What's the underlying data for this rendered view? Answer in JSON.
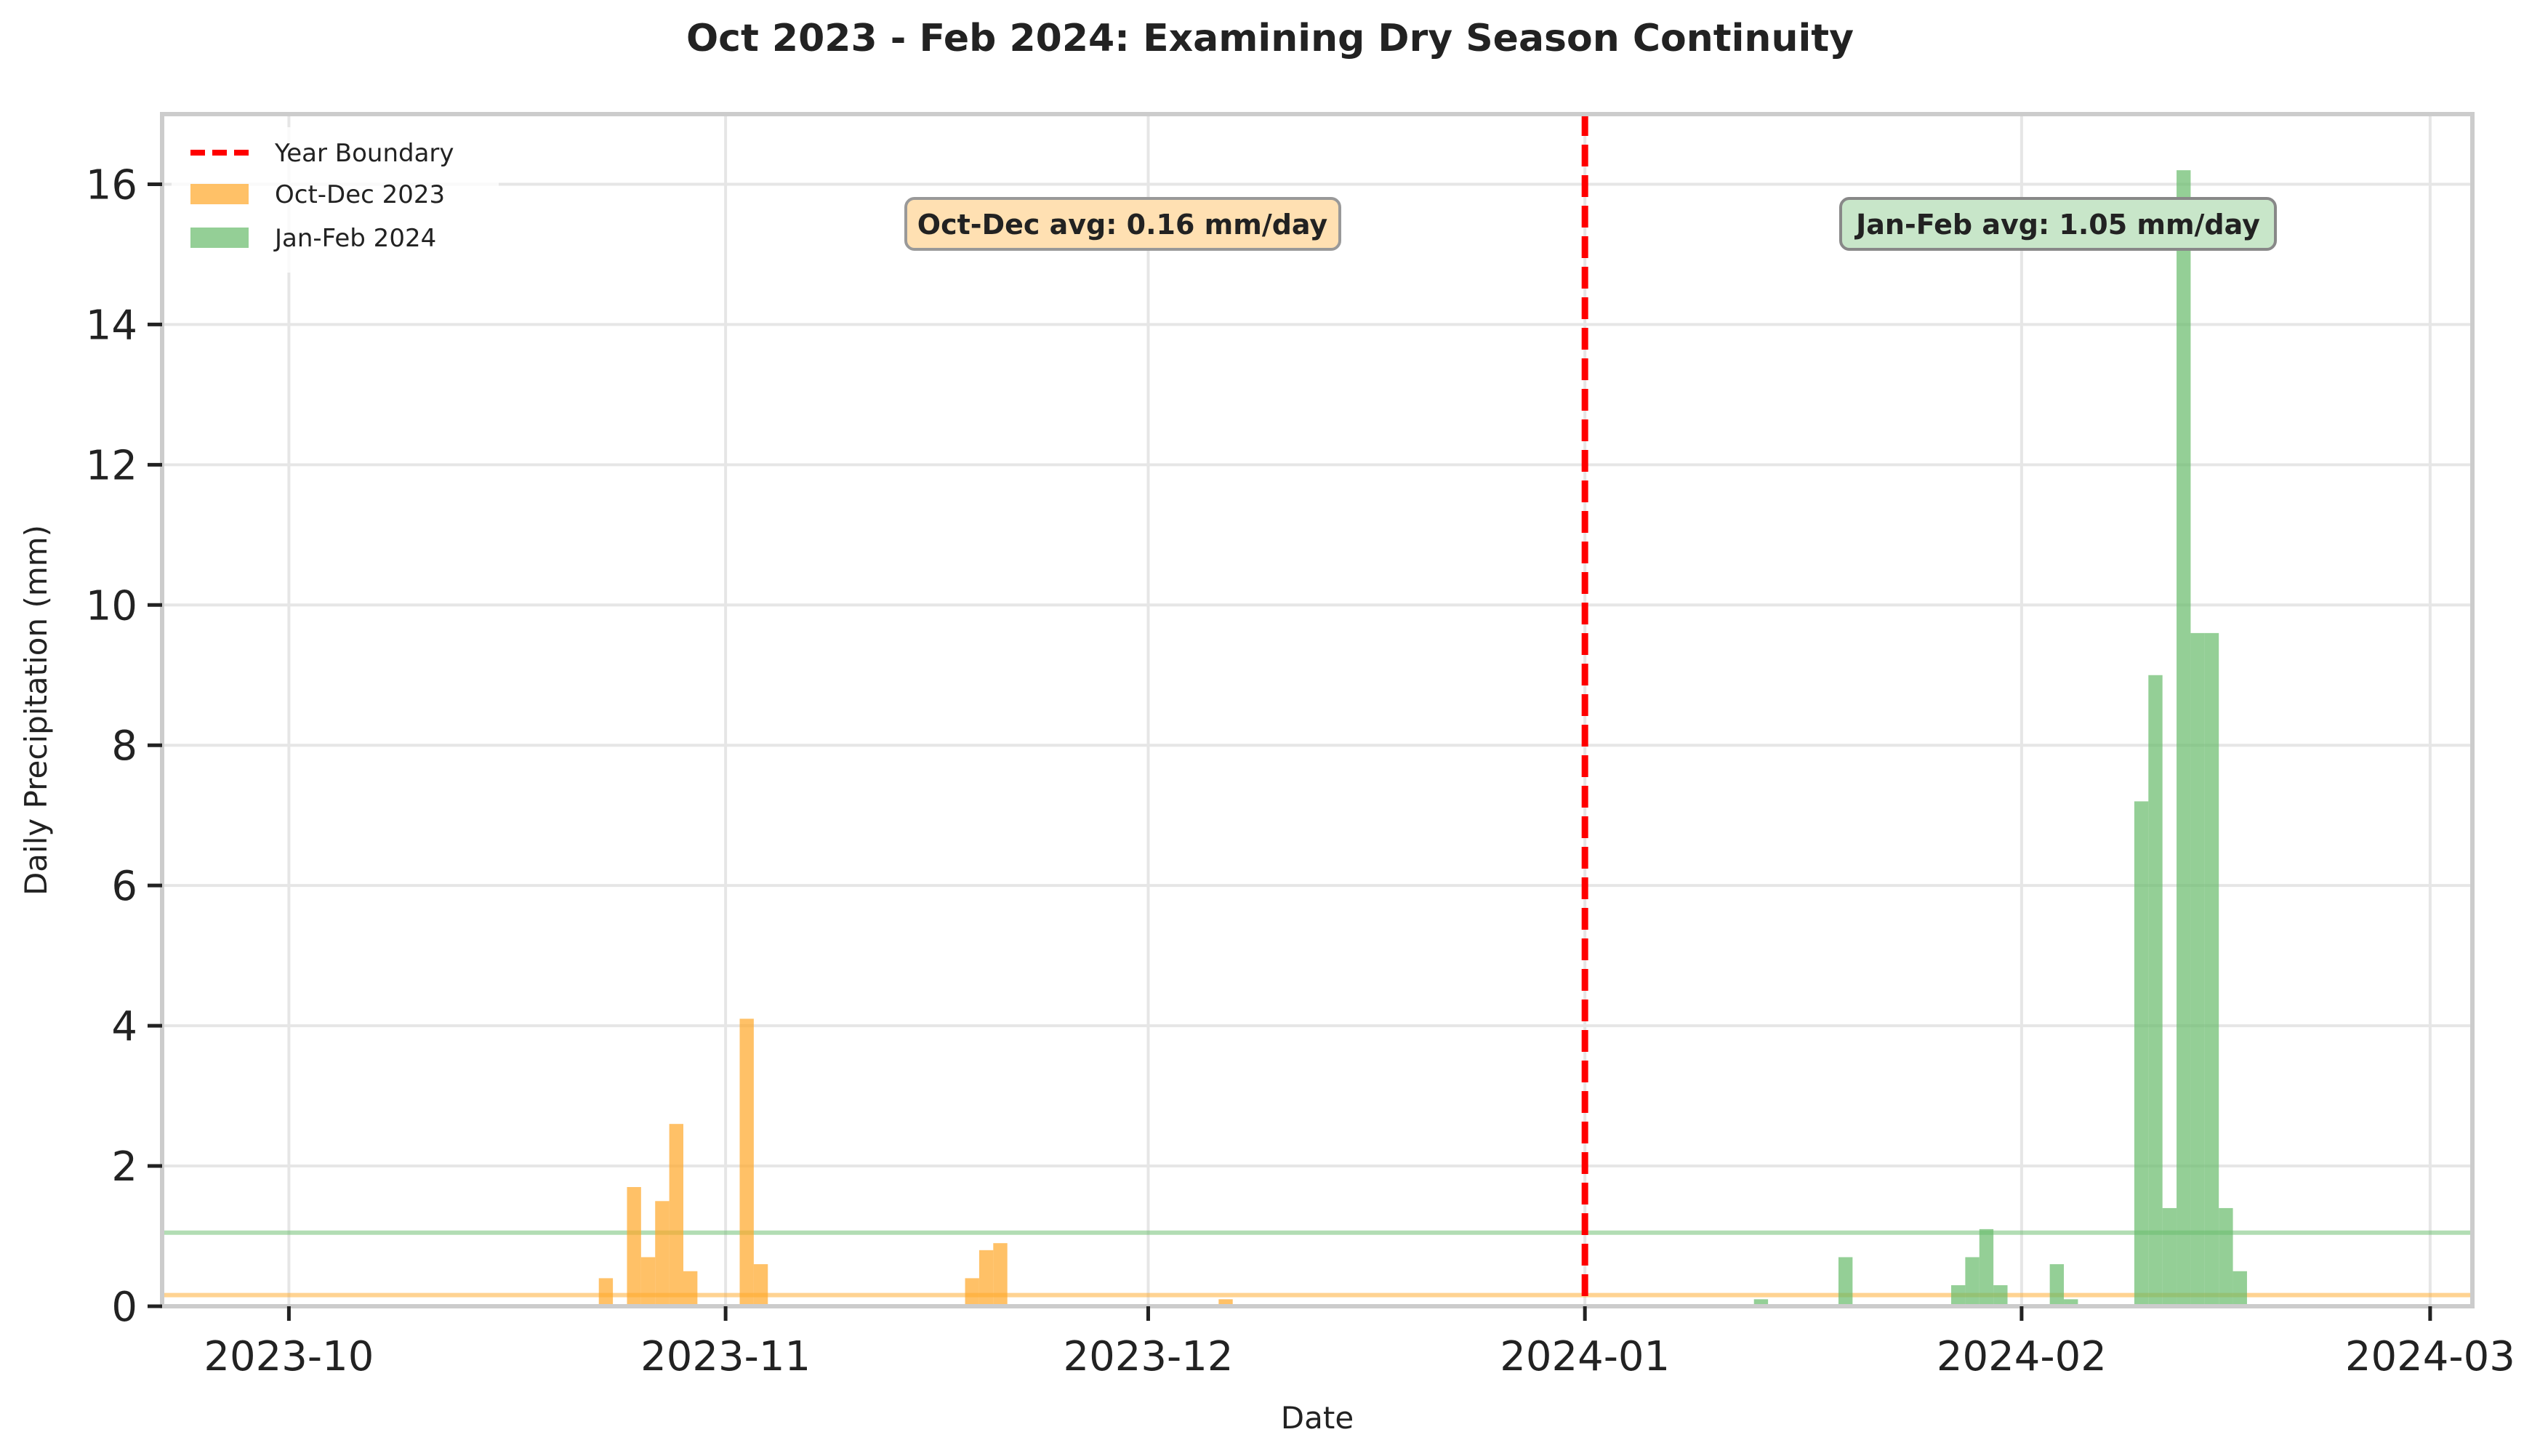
{
  "chart_data": {
    "type": "bar",
    "title": "Oct 2023 - Feb 2024: Examining Dry Season Continuity",
    "xlabel": "Date",
    "ylabel": "Daily Precipitation (mm)",
    "xlim": [
      "2023-09-22",
      "2024-03-04"
    ],
    "ylim": [
      0,
      17
    ],
    "grid": true,
    "legend_position": "top-left",
    "x_ticks": [
      "2023-10",
      "2023-11",
      "2023-12",
      "2024-01",
      "2024-02",
      "2024-03"
    ],
    "x_tick_dates": [
      "2023-10-01",
      "2023-11-01",
      "2023-12-01",
      "2024-01-01",
      "2024-02-01",
      "2024-03-01"
    ],
    "y_ticks": [
      "0",
      "2",
      "4",
      "6",
      "8",
      "10",
      "12",
      "14",
      "16"
    ],
    "colors": {
      "oct_dec": "#ffa726",
      "jan_feb": "#66bb6a",
      "boundary": "#ff0000"
    },
    "series": [
      {
        "name": "Oct-Dec 2023",
        "color": "#ffa726",
        "points": [
          [
            "2023-10-23",
            0.4
          ],
          [
            "2023-10-25",
            1.7
          ],
          [
            "2023-10-26",
            0.7
          ],
          [
            "2023-10-27",
            1.5
          ],
          [
            "2023-10-28",
            2.6
          ],
          [
            "2023-10-29",
            0.5
          ],
          [
            "2023-11-02",
            4.1
          ],
          [
            "2023-11-03",
            0.6
          ],
          [
            "2023-11-18",
            0.4
          ],
          [
            "2023-11-19",
            0.8
          ],
          [
            "2023-11-20",
            0.9
          ],
          [
            "2023-12-06",
            0.1
          ]
        ]
      },
      {
        "name": "Jan-Feb 2024",
        "color": "#66bb6a",
        "points": [
          [
            "2024-01-13",
            0.1
          ],
          [
            "2024-01-19",
            0.7
          ],
          [
            "2024-01-27",
            0.3
          ],
          [
            "2024-01-28",
            0.7
          ],
          [
            "2024-01-29",
            1.1
          ],
          [
            "2024-01-30",
            0.3
          ],
          [
            "2024-02-03",
            0.6
          ],
          [
            "2024-02-04",
            0.1
          ],
          [
            "2024-02-09",
            7.2
          ],
          [
            "2024-02-10",
            9.0
          ],
          [
            "2024-02-11",
            1.4
          ],
          [
            "2024-02-12",
            16.2
          ],
          [
            "2024-02-13",
            9.6
          ],
          [
            "2024-02-14",
            9.6
          ],
          [
            "2024-02-15",
            1.4
          ],
          [
            "2024-02-16",
            0.5
          ]
        ]
      }
    ],
    "reference_lines": [
      {
        "name": "Year Boundary",
        "date": "2024-01-01",
        "color": "#ff0000",
        "style": "dashed"
      },
      {
        "name": "Oct-Dec avg line",
        "value": 0.16,
        "color": "#ffa726"
      },
      {
        "name": "Jan-Feb avg line",
        "value": 1.05,
        "color": "#66bb6a"
      }
    ],
    "annotations": [
      {
        "text": "Oct-Dec avg: 0.16 mm/day",
        "color": "#ffa726"
      },
      {
        "text": "Jan-Feb avg: 1.05 mm/day",
        "color": "#66bb6a"
      }
    ],
    "legend": [
      "Year Boundary",
      "Oct-Dec 2023",
      "Jan-Feb 2024"
    ]
  }
}
